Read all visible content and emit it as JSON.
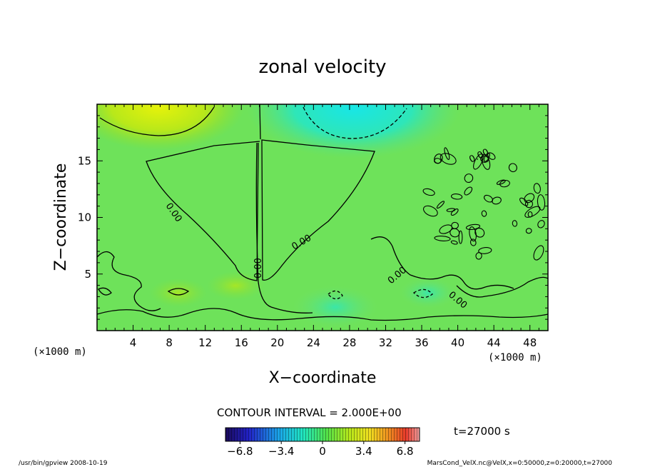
{
  "chart_data": {
    "type": "heatmap",
    "title": "zonal velocity",
    "xlabel": "X−coordinate",
    "ylabel": "Z−coordinate",
    "x_unit": "(×1000 m)",
    "x_unit_right": "(×1000 m)",
    "xlim": [
      0,
      50
    ],
    "ylim": [
      0,
      20
    ],
    "x_ticks": [
      4,
      8,
      12,
      16,
      20,
      24,
      28,
      32,
      36,
      40,
      44,
      48
    ],
    "y_ticks": [
      5,
      10,
      15
    ],
    "contour_interval": "CONTOUR INTERVAL = 2.000E+00",
    "contour_labels": [
      "0.00",
      "0.00",
      "0.00",
      "0.00",
      "0.00",
      "0.00",
      "0.00"
    ],
    "time_label": "t=27000 s",
    "colorbar": {
      "range": [
        -8,
        8
      ],
      "tick_labels": [
        "−6.8",
        "−3.4",
        "0",
        "3.4",
        "6.8"
      ],
      "tick_values": [
        -6.8,
        -3.4,
        0,
        3.4,
        6.8
      ]
    },
    "footer_left": "/usr/bin/gpview   2008-10-19",
    "footer_right": "MarsCond_VelX.nc@VelX,x=0:50000,z=0:20000,t=27000"
  }
}
